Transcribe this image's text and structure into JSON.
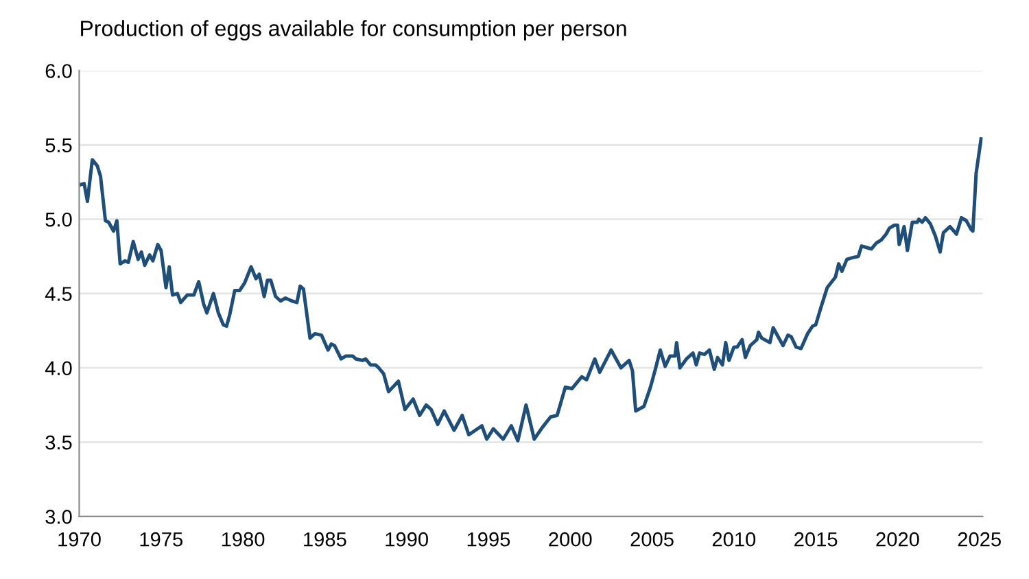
{
  "chart_data": {
    "type": "line",
    "title": "Production of eggs available for consumption per person",
    "x": [
      1970.0,
      1970.3,
      1970.5,
      1970.8,
      1971.1,
      1971.3,
      1971.6,
      1971.8,
      1972.1,
      1972.3,
      1972.5,
      1972.8,
      1973.0,
      1973.3,
      1973.6,
      1973.8,
      1974.0,
      1974.3,
      1974.5,
      1974.8,
      1975.0,
      1975.3,
      1975.5,
      1975.7,
      1976.0,
      1976.2,
      1976.6,
      1977.0,
      1977.3,
      1977.6,
      1977.8,
      1978.2,
      1978.5,
      1978.8,
      1979.0,
      1979.2,
      1979.5,
      1979.8,
      1980.1,
      1980.5,
      1980.8,
      1981.0,
      1981.3,
      1981.5,
      1981.7,
      1982.0,
      1982.3,
      1982.6,
      1983.0,
      1983.3,
      1983.5,
      1983.7,
      1984.1,
      1984.4,
      1984.8,
      1985.2,
      1985.4,
      1985.6,
      1986.0,
      1986.3,
      1986.7,
      1986.9,
      1987.3,
      1987.5,
      1987.8,
      1988.1,
      1988.3,
      1988.6,
      1988.9,
      1989.5,
      1989.9,
      1990.4,
      1990.8,
      1991.2,
      1991.5,
      1991.9,
      1992.3,
      1992.9,
      1993.4,
      1993.8,
      1994.6,
      1994.9,
      1995.3,
      1995.9,
      1996.4,
      1996.8,
      1997.3,
      1997.8,
      1998.3,
      1998.8,
      1999.2,
      1999.7,
      2000.1,
      2000.7,
      2001.0,
      2001.5,
      2001.8,
      2002.5,
      2003.1,
      2003.6,
      2003.8,
      2004.0,
      2004.5,
      2004.9,
      2005.2,
      2005.5,
      2005.8,
      2006.1,
      2006.4,
      2006.5,
      2006.7,
      2007.1,
      2007.5,
      2007.7,
      2007.9,
      2008.2,
      2008.5,
      2008.8,
      2009.0,
      2009.3,
      2009.5,
      2009.7,
      2010.0,
      2010.2,
      2010.5,
      2010.7,
      2011.0,
      2011.4,
      2011.5,
      2011.7,
      2012.2,
      2012.4,
      2012.7,
      2013.0,
      2013.3,
      2013.5,
      2013.8,
      2014.1,
      2014.5,
      2014.8,
      2015.0,
      2015.3,
      2015.7,
      2016.2,
      2016.4,
      2016.6,
      2016.9,
      2017.2,
      2017.6,
      2017.8,
      2018.1,
      2018.4,
      2018.7,
      2019.0,
      2019.3,
      2019.5,
      2019.8,
      2020.0,
      2020.1,
      2020.4,
      2020.6,
      2020.9,
      2021.2,
      2021.3,
      2021.5,
      2021.7,
      2022.0,
      2022.3,
      2022.6,
      2022.8,
      2023.2,
      2023.6,
      2023.9,
      2024.2,
      2024.5,
      2024.6,
      2024.8,
      2025.1
    ],
    "series": [
      {
        "color": "#1f4e79",
        "values": [
          5.23,
          5.24,
          5.12,
          5.4,
          5.36,
          5.29,
          4.99,
          4.98,
          4.92,
          4.99,
          4.7,
          4.72,
          4.71,
          4.85,
          4.73,
          4.78,
          4.69,
          4.76,
          4.72,
          4.83,
          4.79,
          4.54,
          4.68,
          4.49,
          4.5,
          4.44,
          4.49,
          4.49,
          4.58,
          4.43,
          4.37,
          4.5,
          4.37,
          4.29,
          4.28,
          4.36,
          4.52,
          4.52,
          4.57,
          4.68,
          4.6,
          4.63,
          4.48,
          4.59,
          4.59,
          4.48,
          4.45,
          4.47,
          4.45,
          4.44,
          4.55,
          4.53,
          4.2,
          4.23,
          4.22,
          4.12,
          4.16,
          4.15,
          4.06,
          4.08,
          4.08,
          4.06,
          4.05,
          4.06,
          4.02,
          4.02,
          4.0,
          3.96,
          3.84,
          3.91,
          3.72,
          3.79,
          3.68,
          3.75,
          3.72,
          3.62,
          3.71,
          3.58,
          3.68,
          3.55,
          3.61,
          3.52,
          3.59,
          3.52,
          3.61,
          3.51,
          3.75,
          3.52,
          3.6,
          3.67,
          3.68,
          3.87,
          3.86,
          3.94,
          3.92,
          4.06,
          3.97,
          4.12,
          4.0,
          4.05,
          3.98,
          3.71,
          3.74,
          3.87,
          3.99,
          4.12,
          4.01,
          4.08,
          4.08,
          4.17,
          4.0,
          4.06,
          4.1,
          4.02,
          4.1,
          4.09,
          4.12,
          3.99,
          4.07,
          4.02,
          4.17,
          4.05,
          4.14,
          4.14,
          4.19,
          4.07,
          4.15,
          4.19,
          4.24,
          4.2,
          4.17,
          4.27,
          4.21,
          4.15,
          4.22,
          4.21,
          4.14,
          4.13,
          4.23,
          4.28,
          4.29,
          4.4,
          4.54,
          4.61,
          4.7,
          4.65,
          4.73,
          4.74,
          4.75,
          4.82,
          4.81,
          4.8,
          4.84,
          4.86,
          4.9,
          4.94,
          4.96,
          4.96,
          4.83,
          4.95,
          4.79,
          4.98,
          4.98,
          5.0,
          4.98,
          5.01,
          4.97,
          4.89,
          4.78,
          4.91,
          4.95,
          4.9,
          5.01,
          4.99,
          4.93,
          4.92,
          5.31,
          5.54
        ]
      }
    ],
    "xlim": [
      1970,
      2025.2
    ],
    "xticks": [
      1970,
      1975,
      1980,
      1985,
      1990,
      1995,
      2000,
      2005,
      2010,
      2015,
      2020,
      2025
    ],
    "ylim": [
      3.0,
      6.0
    ],
    "yticks": [
      {
        "value": 3.0,
        "label": "3.0"
      },
      {
        "value": 3.5,
        "label": "3.5"
      },
      {
        "value": 4.0,
        "label": "4.0"
      },
      {
        "value": 4.5,
        "label": "4.5"
      },
      {
        "value": 5.0,
        "label": "5.0"
      },
      {
        "value": 5.5,
        "label": "5.5"
      },
      {
        "value": 6.0,
        "label": "6.0"
      }
    ],
    "grid": "y",
    "marker": "none",
    "line_style": "solid"
  }
}
